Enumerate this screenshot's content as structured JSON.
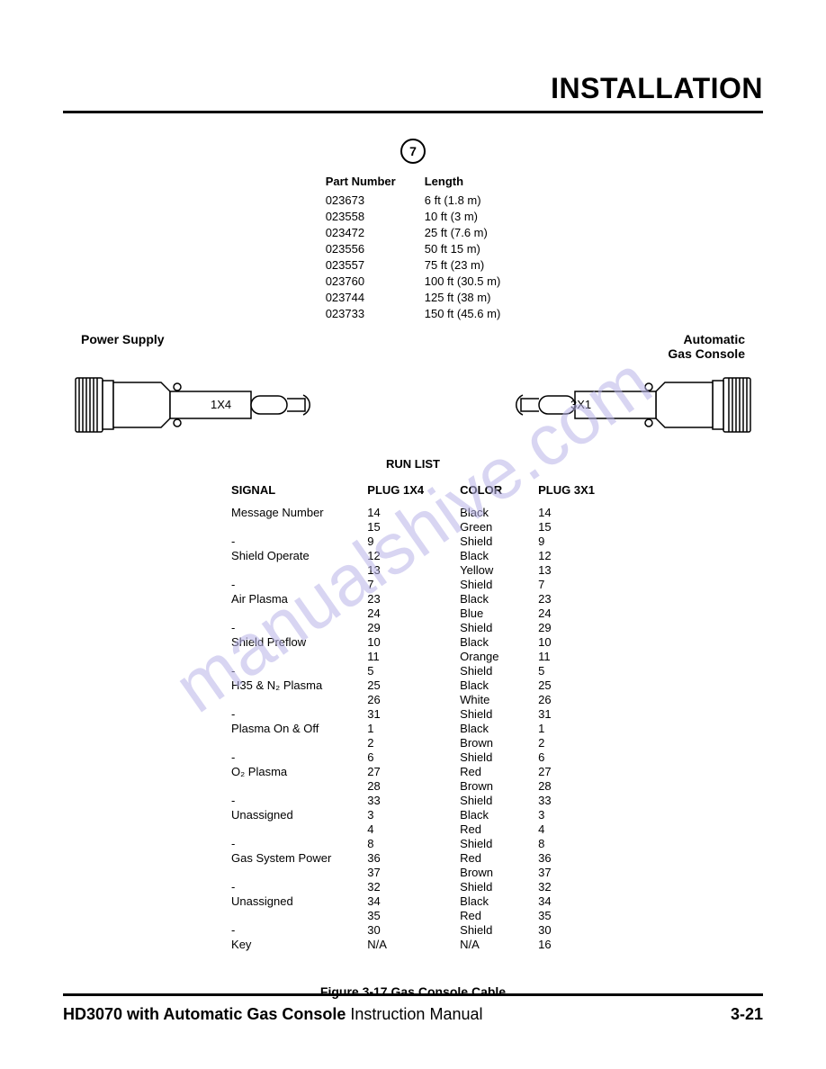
{
  "section_title": "INSTALLATION",
  "circle_number": "7",
  "parts": {
    "headers": [
      "Part Number",
      "Length"
    ],
    "rows": [
      [
        "023673",
        "6 ft (1.8 m)"
      ],
      [
        "023558",
        "10 ft (3 m)"
      ],
      [
        "023472",
        "25 ft (7.6 m)"
      ],
      [
        "023556",
        "50 ft 15 m)"
      ],
      [
        "023557",
        "75 ft (23 m)"
      ],
      [
        "023760",
        "100 ft (30.5 m)"
      ],
      [
        "023744",
        "125 ft (38 m)"
      ],
      [
        "023733",
        "150 ft (45.6 m)"
      ]
    ]
  },
  "left_label": "Power Supply",
  "right_label_line1": "Automatic",
  "right_label_line2": "Gas Console",
  "plug_left": "1X4",
  "plug_right": "3X1",
  "run_list_title": "RUN LIST",
  "run_list": {
    "headers": [
      "SIGNAL",
      "PLUG 1X4",
      "COLOR",
      "PLUG 3X1"
    ],
    "rows": [
      [
        "Message Number",
        "14",
        "Black",
        "14"
      ],
      [
        "",
        "15",
        "Green",
        "15"
      ],
      [
        "-",
        "9",
        "Shield",
        "9"
      ],
      [
        "Shield Operate",
        "12",
        "Black",
        "12"
      ],
      [
        "",
        "13",
        "Yellow",
        "13"
      ],
      [
        "-",
        "7",
        "Shield",
        "7"
      ],
      [
        "Air Plasma",
        "23",
        "Black",
        "23"
      ],
      [
        "",
        "24",
        "Blue",
        "24"
      ],
      [
        "-",
        "29",
        "Shield",
        "29"
      ],
      [
        "Shield Preflow",
        "10",
        "Black",
        "10"
      ],
      [
        "",
        "11",
        "Orange",
        "11"
      ],
      [
        "-",
        "5",
        "Shield",
        "5"
      ],
      [
        "H35 & N₂ Plasma",
        "25",
        "Black",
        "25"
      ],
      [
        "",
        "26",
        "White",
        "26"
      ],
      [
        "-",
        "31",
        "Shield",
        "31"
      ],
      [
        "Plasma On & Off",
        "1",
        "Black",
        "1"
      ],
      [
        "",
        "2",
        "Brown",
        "2"
      ],
      [
        "-",
        "6",
        "Shield",
        "6"
      ],
      [
        "O₂ Plasma",
        "27",
        "Red",
        "27"
      ],
      [
        "",
        "28",
        "Brown",
        "28"
      ],
      [
        "-",
        "33",
        "Shield",
        "33"
      ],
      [
        "Unassigned",
        "3",
        "Black",
        "3"
      ],
      [
        "",
        "4",
        "Red",
        "4"
      ],
      [
        "-",
        "8",
        "Shield",
        "8"
      ],
      [
        "Gas System Power",
        "36",
        "Red",
        "36"
      ],
      [
        "",
        "37",
        "Brown",
        "37"
      ],
      [
        "-",
        "32",
        "Shield",
        "32"
      ],
      [
        "Unassigned",
        "34",
        "Black",
        "34"
      ],
      [
        "",
        "35",
        "Red",
        "35"
      ],
      [
        "-",
        "30",
        "Shield",
        "30"
      ],
      [
        "Key",
        "N/A",
        "N/A",
        "16"
      ]
    ]
  },
  "figure_caption": "Figure 3-17   Gas Console Cable",
  "footer_product": "HD3070 with Automatic Gas Console",
  "footer_manual": " Instruction Manual",
  "page_number": "3-21",
  "watermark": "manualshive.com",
  "colors": {
    "text": "#000000",
    "background": "#ffffff",
    "watermark": "#b9b4e8",
    "rule": "#000000"
  }
}
